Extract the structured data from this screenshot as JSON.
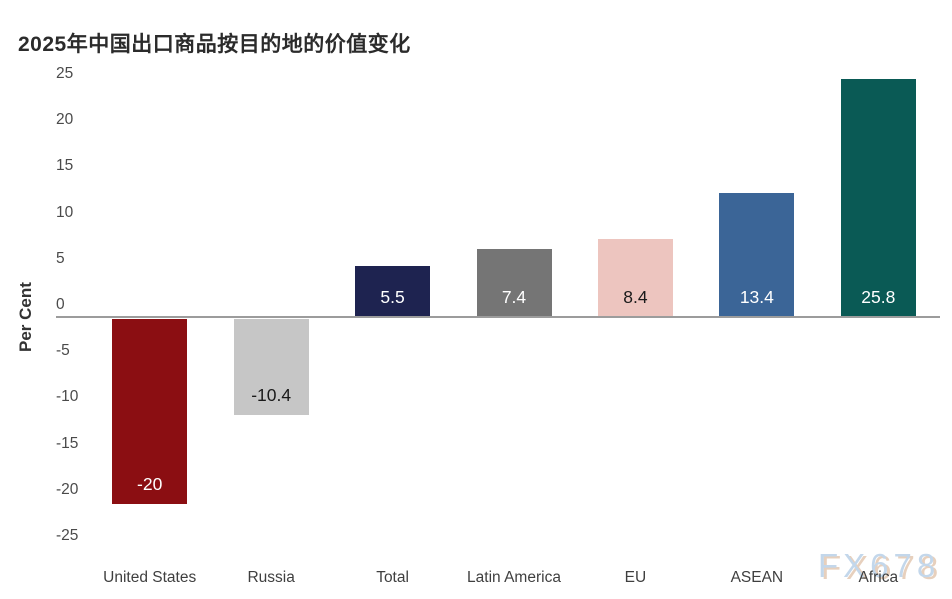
{
  "title": "2025年中国出口商品按目的地的价值变化",
  "watermark": "FX678",
  "chart_data": {
    "type": "bar",
    "title": "2025年中国出口商品按目的地的价值变化",
    "categories": [
      "United States",
      "Russia",
      "Total",
      "Latin America",
      "EU",
      "ASEAN",
      "Africa"
    ],
    "values": [
      -20,
      -10.4,
      5.5,
      7.4,
      8.4,
      13.4,
      25.8
    ],
    "value_labels": [
      "-20",
      "-10.4",
      "5.5",
      "7.4",
      "8.4",
      "13.4",
      "25.8"
    ],
    "bar_colors": [
      "#8B0E12",
      "#C6C6C6",
      "#1E2350",
      "#757575",
      "#EDC5BF",
      "#3B6597",
      "#0A5A55"
    ],
    "value_label_colors": [
      "#ffffff",
      "#1a1a1a",
      "#ffffff",
      "#ffffff",
      "#1a1a1a",
      "#ffffff",
      "#ffffff"
    ],
    "xlabel": "",
    "ylabel": "Per Cent",
    "ylim": [
      -25,
      25
    ],
    "yticks": [
      25,
      20,
      15,
      10,
      5,
      0,
      -5,
      -10,
      -15,
      -20,
      -25
    ],
    "grid": false,
    "legend": "none",
    "zero_line_color": "#9c9c9c",
    "background_color": "#ffffff"
  }
}
